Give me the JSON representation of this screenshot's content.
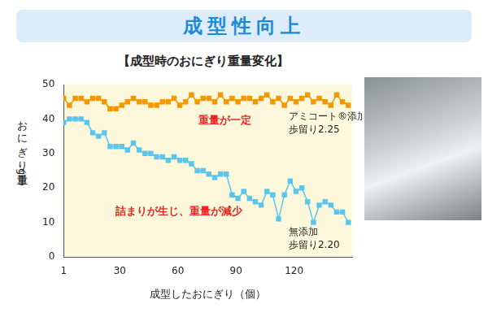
{
  "chart_data": {
    "type": "line",
    "banner": "成型性向上",
    "title": "【成型時のおにぎり重量変化】",
    "y_label": "おにぎり重量（g）",
    "x_label": "成型したおにぎり（個）",
    "x": [
      1,
      4,
      7,
      10,
      13,
      16,
      19,
      22,
      25,
      28,
      31,
      34,
      37,
      40,
      43,
      46,
      49,
      52,
      55,
      58,
      61,
      64,
      67,
      70,
      73,
      76,
      79,
      82,
      85,
      88,
      91,
      94,
      97,
      100,
      103,
      106,
      109,
      112,
      115,
      118,
      121,
      124,
      127,
      130,
      133,
      136,
      139,
      142,
      145,
      148
    ],
    "series": [
      {
        "name": "アミコート®添加",
        "note": "歩留り2.25",
        "color": "#f39800",
        "marker": "square",
        "values": [
          46,
          44,
          46,
          46,
          45,
          46,
          46,
          45,
          43,
          43,
          44,
          45,
          46,
          45,
          45,
          44,
          44,
          45,
          45,
          46,
          44,
          45,
          47,
          45,
          46,
          46,
          45,
          47,
          45,
          46,
          45,
          46,
          46,
          45,
          46,
          47,
          45,
          46,
          44,
          46,
          45,
          46,
          47,
          45,
          46,
          45,
          44,
          47,
          45,
          44
        ]
      },
      {
        "name": "無添加",
        "note": "歩留り2.20",
        "color": "#5bc5ec",
        "marker": "square",
        "values": [
          39,
          40,
          40,
          40,
          39,
          36,
          35,
          36,
          32,
          32,
          32,
          31,
          33,
          31,
          30,
          30,
          29,
          29,
          28,
          29,
          28,
          28,
          27,
          25,
          25,
          24,
          23,
          24,
          24,
          18,
          17,
          19,
          17,
          16,
          15,
          19,
          18,
          11,
          18,
          22,
          19,
          20,
          16,
          10,
          15,
          16,
          15,
          13,
          13,
          10
        ]
      }
    ],
    "annotations": [
      {
        "text": "重量が一定",
        "color": "#e8251e"
      },
      {
        "text": "詰まりが生じ、重量が減少",
        "color": "#e8251e"
      }
    ],
    "xlim": [
      1,
      150
    ],
    "xticks": [
      1,
      30,
      60,
      90,
      120
    ],
    "ylim": [
      0,
      50
    ],
    "yticks": [
      0,
      10,
      20,
      30,
      40,
      50
    ],
    "grid": false
  }
}
